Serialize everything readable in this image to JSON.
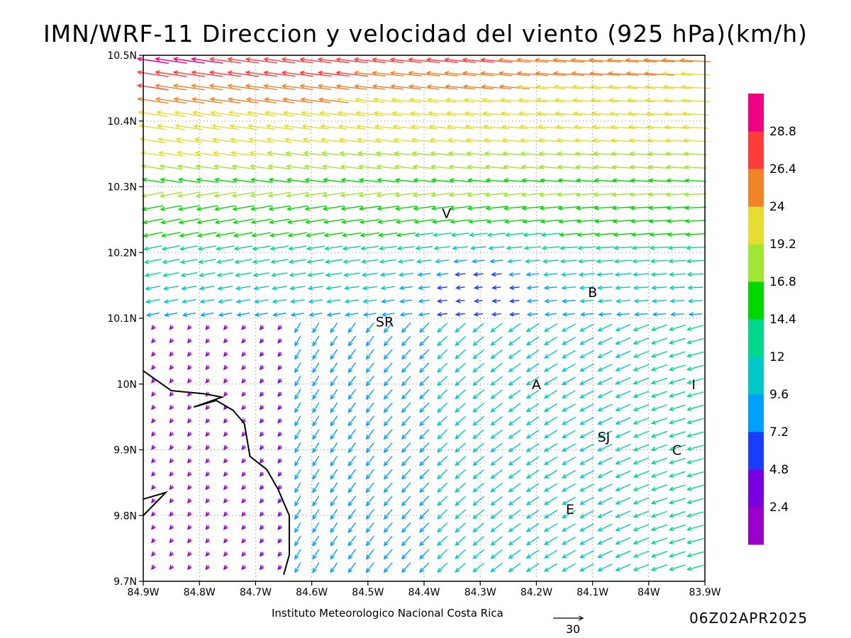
{
  "title": "IMN/WRF-11 Direccion y velocidad del viento (925 hPa)(km/h)",
  "credit": "Instituto Meteorologico Nacional Costa Rica",
  "timestamp": "06Z02APR2025",
  "reference_vector": {
    "label": "30",
    "value_kmh": 30
  },
  "chart_data": {
    "type": "vector_field",
    "x_axis": {
      "ticks": [
        "84.9W",
        "84.8W",
        "84.7W",
        "84.6W",
        "84.5W",
        "84.4W",
        "84.3W",
        "84.2W",
        "84.1W",
        "84W",
        "83.9W"
      ],
      "range": [
        -84.9,
        -83.9
      ],
      "unit": "degrees longitude"
    },
    "y_axis": {
      "ticks": [
        "9.7N",
        "9.8N",
        "9.9N",
        "10N",
        "10.1N",
        "10.2N",
        "10.3N",
        "10.4N",
        "10.5N"
      ],
      "range": [
        9.7,
        10.5
      ],
      "unit": "degrees latitude"
    },
    "grid": "dotted",
    "colorbar": {
      "labels": [
        "2.4",
        "4.8",
        "7.2",
        "9.6",
        "12",
        "14.4",
        "16.8",
        "19.2",
        "24",
        "26.4",
        "28.8"
      ],
      "colors": [
        "#9900cc",
        "#7a00e0",
        "#1a3cff",
        "#00a0ff",
        "#00c8c8",
        "#00d88c",
        "#00d800",
        "#a0e632",
        "#e6dc32",
        "#f08228",
        "#ff3c3c",
        "#f00082"
      ]
    },
    "station_labels": [
      {
        "text": "V",
        "lon": -84.36,
        "lat": 10.26
      },
      {
        "text": "B",
        "lon": -84.1,
        "lat": 10.14
      },
      {
        "text": "SR",
        "lon": -84.47,
        "lat": 10.095
      },
      {
        "text": "A",
        "lon": -84.2,
        "lat": 10.0
      },
      {
        "text": "I",
        "lon": -83.92,
        "lat": 10.0
      },
      {
        "text": "SJ",
        "lon": -84.08,
        "lat": 9.92
      },
      {
        "text": "C",
        "lon": -83.95,
        "lat": 9.9
      },
      {
        "text": "E",
        "lon": -84.14,
        "lat": 9.81
      }
    ],
    "coastline": [
      [
        -84.9,
        10.02
      ],
      [
        -84.85,
        9.99
      ],
      [
        -84.79,
        9.985
      ],
      [
        -84.76,
        9.98
      ],
      [
        -84.81,
        9.965
      ],
      [
        -84.77,
        9.975
      ],
      [
        -84.74,
        9.96
      ],
      [
        -84.72,
        9.94
      ],
      [
        -84.71,
        9.89
      ],
      [
        -84.68,
        9.87
      ],
      [
        -84.66,
        9.84
      ],
      [
        -84.64,
        9.8
      ],
      [
        -84.64,
        9.74
      ],
      [
        -84.65,
        9.71
      ]
    ],
    "coastline_2": [
      [
        -84.9,
        9.825
      ],
      [
        -84.86,
        9.835
      ],
      [
        -84.9,
        9.8
      ]
    ]
  }
}
